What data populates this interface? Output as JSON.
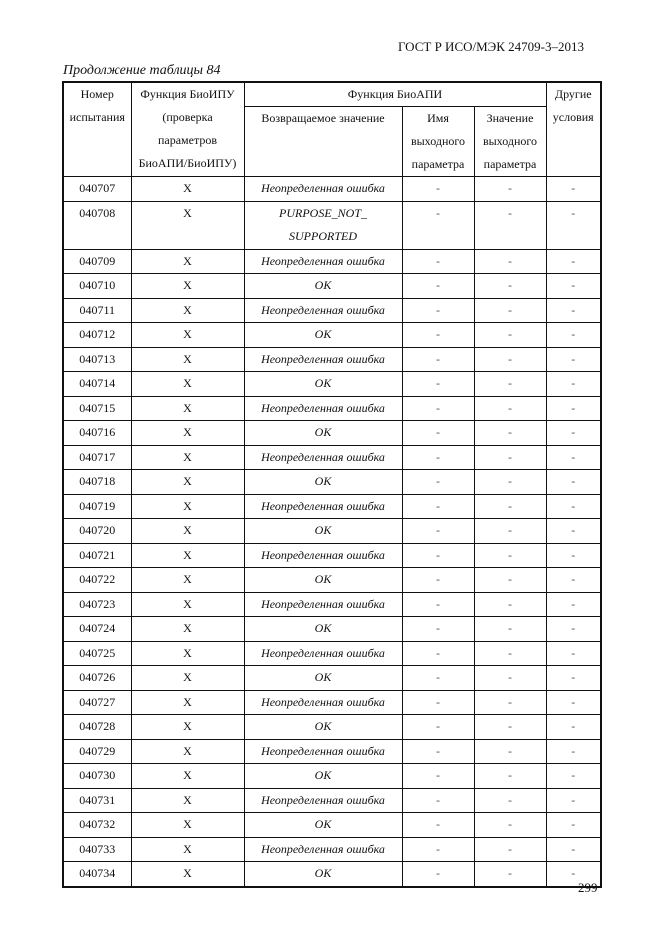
{
  "header": {
    "standard": "ГОСТ Р ИСО/МЭК 24709-3–2013"
  },
  "caption": "Продолжение таблицы 84",
  "table": {
    "headers": {
      "test_number": [
        "Номер",
        "испытания"
      ],
      "bsp_function": [
        "Функция БиоИПУ",
        "(проверка",
        "параметров",
        "БиоАПИ/БиоИПУ)"
      ],
      "bioapi_function": "Функция БиоАПИ",
      "return_value": "Возвращаемое значение",
      "output_param_name": [
        "Имя",
        "выходного",
        "параметра"
      ],
      "output_param_value": [
        "Значение",
        "выходного",
        "параметра"
      ],
      "other_conditions": [
        "Другие",
        "условия"
      ]
    },
    "rows": [
      {
        "num": "040707",
        "bsp": "X",
        "ret": "Неопределенная ошибка",
        "name": "-",
        "value": "-",
        "other": "-"
      },
      {
        "num": "040708",
        "bsp": "X",
        "ret": "PURPOSE_NOT_",
        "ret2": "SUPPORTED",
        "name": "-",
        "value": "-",
        "other": "-"
      },
      {
        "num": "040709",
        "bsp": "X",
        "ret": "Неопределенная ошибка",
        "name": "-",
        "value": "-",
        "other": "-"
      },
      {
        "num": "040710",
        "bsp": "X",
        "ret": "OK",
        "name": "-",
        "value": "-",
        "other": "-"
      },
      {
        "num": "040711",
        "bsp": "X",
        "ret": "Неопределенная ошибка",
        "name": "-",
        "value": "-",
        "other": "-"
      },
      {
        "num": "040712",
        "bsp": "X",
        "ret": "OK",
        "name": "-",
        "value": "-",
        "other": "-"
      },
      {
        "num": "040713",
        "bsp": "X",
        "ret": "Неопределенная ошибка",
        "name": "-",
        "value": "-",
        "other": "-"
      },
      {
        "num": "040714",
        "bsp": "X",
        "ret": "OK",
        "name": "-",
        "value": "-",
        "other": "-"
      },
      {
        "num": "040715",
        "bsp": "X",
        "ret": "Неопределенная ошибка",
        "name": "-",
        "value": "-",
        "other": "-"
      },
      {
        "num": "040716",
        "bsp": "X",
        "ret": "OK",
        "name": "-",
        "value": "-",
        "other": "-"
      },
      {
        "num": "040717",
        "bsp": "X",
        "ret": "Неопределенная ошибка",
        "name": "-",
        "value": "-",
        "other": "-"
      },
      {
        "num": "040718",
        "bsp": "X",
        "ret": "OK",
        "name": "-",
        "value": "-",
        "other": "-"
      },
      {
        "num": "040719",
        "bsp": "X",
        "ret": "Неопределенная ошибка",
        "name": "-",
        "value": "-",
        "other": "-"
      },
      {
        "num": "040720",
        "bsp": "X",
        "ret": "OK",
        "name": "-",
        "value": "-",
        "other": "-"
      },
      {
        "num": "040721",
        "bsp": "X",
        "ret": "Неопределенная ошибка",
        "name": "-",
        "value": "-",
        "other": "-"
      },
      {
        "num": "040722",
        "bsp": "X",
        "ret": "OK",
        "name": "-",
        "value": "-",
        "other": "-"
      },
      {
        "num": "040723",
        "bsp": "X",
        "ret": "Неопределенная ошибка",
        "name": "-",
        "value": "-",
        "other": "-"
      },
      {
        "num": "040724",
        "bsp": "X",
        "ret": "OK",
        "name": "-",
        "value": "-",
        "other": "-"
      },
      {
        "num": "040725",
        "bsp": "X",
        "ret": "Неопределенная ошибка",
        "name": "-",
        "value": "-",
        "other": "-"
      },
      {
        "num": "040726",
        "bsp": "X",
        "ret": "OK",
        "name": "-",
        "value": "-",
        "other": "-"
      },
      {
        "num": "040727",
        "bsp": "X",
        "ret": "Неопределенная ошибка",
        "name": "-",
        "value": "-",
        "other": "-"
      },
      {
        "num": "040728",
        "bsp": "X",
        "ret": "OK",
        "name": "-",
        "value": "-",
        "other": "-"
      },
      {
        "num": "040729",
        "bsp": "X",
        "ret": "Неопределенная ошибка",
        "name": "-",
        "value": "-",
        "other": "-"
      },
      {
        "num": "040730",
        "bsp": "X",
        "ret": "OK",
        "name": "-",
        "value": "-",
        "other": "-"
      },
      {
        "num": "040731",
        "bsp": "X",
        "ret": "Неопределенная ошибка",
        "name": "-",
        "value": "-",
        "other": "-"
      },
      {
        "num": "040732",
        "bsp": "X",
        "ret": "OK",
        "name": "-",
        "value": "-",
        "other": "-"
      },
      {
        "num": "040733",
        "bsp": "X",
        "ret": "Неопределенная ошибка",
        "name": "-",
        "value": "-",
        "other": "-"
      },
      {
        "num": "040734",
        "bsp": "X",
        "ret": "OK",
        "name": "-",
        "value": "-",
        "other": "-"
      }
    ]
  },
  "footer": {
    "page_number": "299"
  }
}
